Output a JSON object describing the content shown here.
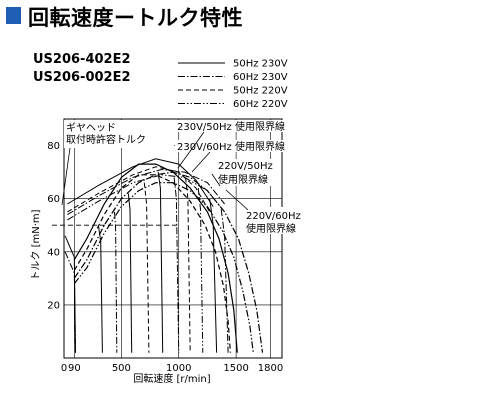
{
  "page": {
    "title": "回転速度ートルク特性",
    "accent_color": "#1f5fb3",
    "models": [
      "US206-402E2",
      "US206-002E2"
    ]
  },
  "chart_data": {
    "type": "line",
    "xlabel": "回転速度 [r/min]",
    "ylabel": "トルク [mN·m]",
    "xlim": [
      0,
      1900
    ],
    "ylim": [
      0,
      90
    ],
    "x_ticks": [
      0,
      90,
      500,
      1000,
      1500,
      1800
    ],
    "x_tick_labels": [
      "0",
      "90",
      "500",
      "1000",
      "1500",
      "1800"
    ],
    "y_ticks": [
      20,
      40,
      60,
      80
    ],
    "y_tick_labels": [
      "20",
      "40",
      "60",
      "80"
    ],
    "grid": true,
    "legend_position": "top-right",
    "series": [
      {
        "name": "50Hz 230V",
        "dash": "solid",
        "points": [
          [
            90,
            37
          ],
          [
            200,
            45
          ],
          [
            350,
            58
          ],
          [
            500,
            68
          ],
          [
            650,
            73
          ],
          [
            800,
            73
          ],
          [
            950,
            70
          ],
          [
            1100,
            64
          ],
          [
            1250,
            55
          ],
          [
            1350,
            45
          ],
          [
            1430,
            32
          ],
          [
            1480,
            18
          ],
          [
            1510,
            2
          ]
        ]
      },
      {
        "name": "60Hz 230V",
        "dash": "dashdot",
        "points": [
          [
            90,
            30
          ],
          [
            200,
            37
          ],
          [
            350,
            50
          ],
          [
            500,
            60
          ],
          [
            650,
            66
          ],
          [
            800,
            69
          ],
          [
            950,
            70
          ],
          [
            1100,
            68
          ],
          [
            1250,
            63
          ],
          [
            1400,
            55
          ],
          [
            1520,
            45
          ],
          [
            1610,
            32
          ],
          [
            1680,
            18
          ],
          [
            1730,
            2
          ]
        ]
      },
      {
        "name": "50Hz 220V",
        "dash": "dash",
        "points": [
          [
            90,
            33
          ],
          [
            200,
            41
          ],
          [
            350,
            54
          ],
          [
            500,
            64
          ],
          [
            650,
            69
          ],
          [
            800,
            69
          ],
          [
            950,
            66
          ],
          [
            1100,
            59
          ],
          [
            1230,
            50
          ],
          [
            1320,
            40
          ],
          [
            1390,
            27
          ],
          [
            1430,
            14
          ],
          [
            1450,
            2
          ]
        ]
      },
      {
        "name": "60Hz 220V",
        "dash": "dashdotdot",
        "points": [
          [
            90,
            28
          ],
          [
            200,
            34
          ],
          [
            350,
            47
          ],
          [
            500,
            57
          ],
          [
            650,
            63
          ],
          [
            800,
            66
          ],
          [
            950,
            66
          ],
          [
            1100,
            63
          ],
          [
            1250,
            57
          ],
          [
            1380,
            48
          ],
          [
            1480,
            38
          ],
          [
            1560,
            25
          ],
          [
            1620,
            12
          ],
          [
            1650,
            2
          ]
        ]
      }
    ],
    "limit_lines": [
      {
        "name": "ギヤヘッド取付時許容トルク",
        "dash": "dash",
        "y": 50
      },
      {
        "name": "230V/50Hz 使用限界線",
        "dash": "solid",
        "points": [
          [
            30,
            58
          ],
          [
            300,
            65
          ],
          [
            600,
            72
          ],
          [
            800,
            75
          ],
          [
            1000,
            73
          ],
          [
            1150,
            67
          ],
          [
            1300,
            57
          ]
        ]
      },
      {
        "name": "230V/60Hz 使用限界線",
        "dash": "dashdot",
        "points": [
          [
            30,
            54
          ],
          [
            300,
            61
          ],
          [
            600,
            68
          ],
          [
            850,
            71
          ],
          [
            1050,
            70
          ],
          [
            1250,
            66
          ],
          [
            1400,
            58
          ]
        ]
      },
      {
        "name": "220V/50Hz 使用限界線",
        "dash": "dash",
        "points": [
          [
            30,
            55
          ],
          [
            300,
            62
          ],
          [
            600,
            69
          ],
          [
            800,
            72
          ],
          [
            1000,
            70
          ],
          [
            1150,
            64
          ],
          [
            1270,
            55
          ]
        ]
      },
      {
        "name": "220V/60Hz 使用限界線",
        "dash": "dashdotdot",
        "points": [
          [
            30,
            52
          ],
          [
            300,
            59
          ],
          [
            600,
            66
          ],
          [
            850,
            69
          ],
          [
            1050,
            68
          ],
          [
            1250,
            63
          ],
          [
            1380,
            56
          ]
        ]
      }
    ],
    "rated_speed_lines": [
      {
        "points": [
          [
            10,
            46
          ],
          [
            90,
            38
          ],
          [
            100,
            2
          ]
        ],
        "dash": "solid"
      },
      {
        "points": [
          [
            10,
            40
          ],
          [
            90,
            32
          ],
          [
            100,
            2
          ]
        ],
        "dash": "dashdot"
      },
      {
        "points": [
          [
            300,
            50
          ],
          [
            320,
            44
          ],
          [
            335,
            2
          ]
        ],
        "dash": "solid"
      },
      {
        "points": [
          [
            440,
            55
          ],
          [
            450,
            49
          ],
          [
            460,
            2
          ]
        ],
        "dash": "dashdot"
      },
      {
        "points": [
          [
            560,
            62
          ],
          [
            575,
            56
          ],
          [
            590,
            2
          ]
        ],
        "dash": "solid"
      },
      {
        "points": [
          [
            700,
            66
          ],
          [
            720,
            58
          ],
          [
            740,
            2
          ]
        ],
        "dash": "dash"
      },
      {
        "points": [
          [
            820,
            70
          ],
          [
            840,
            64
          ],
          [
            860,
            2
          ]
        ],
        "dash": "solid"
      },
      {
        "points": [
          [
            960,
            68
          ],
          [
            980,
            60
          ],
          [
            1000,
            2
          ]
        ],
        "dash": "dashdot"
      },
      {
        "points": [
          [
            1060,
            68
          ],
          [
            1080,
            60
          ],
          [
            1100,
            2
          ]
        ],
        "dash": "dash"
      },
      {
        "points": [
          [
            1170,
            64
          ],
          [
            1190,
            56
          ],
          [
            1210,
            2
          ]
        ],
        "dash": "dashdotdot"
      },
      {
        "points": [
          [
            1270,
            60
          ],
          [
            1300,
            50
          ],
          [
            1330,
            2
          ]
        ],
        "dash": "solid"
      },
      {
        "points": [
          [
            1370,
            56
          ],
          [
            1400,
            46
          ],
          [
            1430,
            2
          ]
        ],
        "dash": "dashdot"
      }
    ],
    "annotations": [
      {
        "text": "ギヤヘッド",
        "target": "gear-label"
      },
      {
        "text": "取付時許容トルク",
        "target": "gear-label"
      },
      {
        "text": "230V/50Hz 使用限界線"
      },
      {
        "text": "230V/60Hz 使用限界線"
      },
      {
        "text": "220V/50Hz"
      },
      {
        "text": "使用限界線"
      },
      {
        "text": "220V/60Hz"
      },
      {
        "text": "使用限界線"
      }
    ]
  }
}
